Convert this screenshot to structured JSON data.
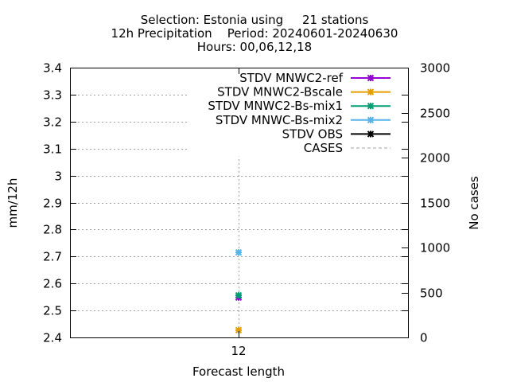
{
  "chart_data": {
    "type": "scatter",
    "title_lines": [
      "Selection: Estonia using     21 stations",
      "12h Precipitation    Period: 20240601-20240630",
      "Hours: 00,06,12,18"
    ],
    "xlabel": "Forecast length",
    "ylabel": "mm/12h",
    "y2label": "No cases",
    "categories": [
      "12"
    ],
    "ylim": [
      2.4,
      3.4
    ],
    "y_ticks": [
      "2.4",
      "2.5",
      "2.6",
      "2.7",
      "2.8",
      "2.9",
      "3",
      "3.1",
      "3.2",
      "3.3",
      "3.4"
    ],
    "y2lim": [
      0,
      3000
    ],
    "y2_ticks": [
      "0",
      "500",
      "1000",
      "1500",
      "2000",
      "2500",
      "3000"
    ],
    "grid": true,
    "legend_position": "top-right",
    "series": [
      {
        "name": "STDV MNWC2-ref",
        "axis": "y",
        "color": "#9400d3",
        "values": [
          2.548
        ]
      },
      {
        "name": "STDV MNWC2-Bscale",
        "axis": "y",
        "color": "#e69f00",
        "values": [
          2.427
        ]
      },
      {
        "name": "STDV MNWC2-Bs-mix1",
        "axis": "y",
        "color": "#009e73",
        "values": [
          2.556
        ]
      },
      {
        "name": "STDV MNWC-Bs-mix2",
        "axis": "y",
        "color": "#56b4e9",
        "values": [
          2.715
        ]
      },
      {
        "name": "STDV OBS",
        "axis": "y",
        "color": "#000000",
        "values": [
          3.303
        ]
      },
      {
        "name": "CASES",
        "axis": "y2",
        "color": "#a0a0a0",
        "dashed": true,
        "values": [
          2060
        ]
      }
    ]
  }
}
